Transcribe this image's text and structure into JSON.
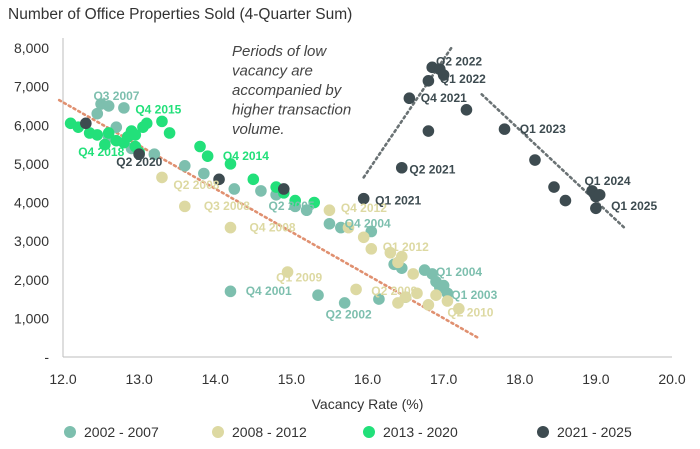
{
  "chart_data": {
    "type": "scatter",
    "title": "Number of Office Properties Sold (4-Quarter Sum)",
    "xlabel": "Vacancy Rate (%)",
    "ylabel": "",
    "xlim": [
      12.0,
      20.0
    ],
    "ylim": [
      0,
      8000
    ],
    "x_ticks": [
      "12.0",
      "13.0",
      "14.0",
      "15.0",
      "16.0",
      "17.0",
      "18.0",
      "19.0",
      "20.0"
    ],
    "y_ticks": [
      "-",
      "1,000",
      "2,000",
      "3,000",
      "4,000",
      "5,000",
      "6,000",
      "7,000",
      "8,000"
    ],
    "grid": false,
    "legend_position": "bottom",
    "note": [
      "Periods of low",
      "vacancy are",
      "accompanied by",
      "higher transaction",
      "volume."
    ],
    "series": [
      {
        "name": "2002 - 2007",
        "color": "#7dbfae",
        "points": [
          [
            12.5,
            6550
          ],
          [
            12.6,
            6500
          ],
          [
            12.8,
            6450
          ],
          [
            12.45,
            6300
          ],
          [
            12.7,
            5950
          ],
          [
            12.6,
            5700
          ],
          [
            12.9,
            5400
          ],
          [
            13.2,
            5250
          ],
          [
            13.6,
            4950
          ],
          [
            13.85,
            4750
          ],
          [
            14.25,
            4350
          ],
          [
            14.6,
            4300
          ],
          [
            14.8,
            4200
          ],
          [
            15.05,
            3900
          ],
          [
            15.2,
            3800
          ],
          [
            15.5,
            3450
          ],
          [
            15.65,
            3350
          ],
          [
            16.05,
            3250
          ],
          [
            16.35,
            2400
          ],
          [
            16.45,
            2300
          ],
          [
            16.75,
            2250
          ],
          [
            16.85,
            2150
          ],
          [
            16.9,
            1950
          ],
          [
            16.95,
            1800
          ],
          [
            17.0,
            1850
          ],
          [
            17.05,
            1650
          ],
          [
            16.5,
            1550
          ],
          [
            16.15,
            1500
          ],
          [
            15.7,
            1400
          ],
          [
            15.35,
            1600
          ],
          [
            14.2,
            1700
          ]
        ]
      },
      {
        "name": "2008 - 2012",
        "color": "#ddd9a2",
        "points": [
          [
            13.3,
            4650
          ],
          [
            13.6,
            3900
          ],
          [
            14.2,
            3350
          ],
          [
            15.5,
            3800
          ],
          [
            15.75,
            3350
          ],
          [
            15.95,
            3100
          ],
          [
            16.05,
            2800
          ],
          [
            16.3,
            2700
          ],
          [
            16.45,
            2600
          ],
          [
            16.4,
            2450
          ],
          [
            16.6,
            2150
          ],
          [
            14.95,
            2200
          ],
          [
            15.85,
            1750
          ],
          [
            16.65,
            1650
          ],
          [
            16.9,
            1600
          ],
          [
            16.5,
            1550
          ],
          [
            16.8,
            1350
          ],
          [
            17.05,
            1450
          ],
          [
            17.2,
            1250
          ],
          [
            16.4,
            1400
          ]
        ]
      },
      {
        "name": "2013 - 2020",
        "color": "#22e07a",
        "points": [
          [
            12.1,
            6050
          ],
          [
            12.2,
            5950
          ],
          [
            12.35,
            5800
          ],
          [
            12.45,
            5750
          ],
          [
            12.6,
            5800
          ],
          [
            12.7,
            5600
          ],
          [
            12.55,
            5500
          ],
          [
            12.8,
            5550
          ],
          [
            12.85,
            5700
          ],
          [
            12.95,
            5750
          ],
          [
            12.9,
            5850
          ],
          [
            13.05,
            5950
          ],
          [
            13.1,
            6050
          ],
          [
            13.3,
            6100
          ],
          [
            13.4,
            5800
          ],
          [
            13.0,
            5300
          ],
          [
            12.95,
            5450
          ],
          [
            13.8,
            5450
          ],
          [
            13.9,
            5200
          ],
          [
            14.2,
            5000
          ],
          [
            14.5,
            4600
          ],
          [
            14.8,
            4400
          ],
          [
            14.9,
            4250
          ],
          [
            15.05,
            4050
          ],
          [
            15.3,
            4000
          ]
        ]
      },
      {
        "name": "2021 - 2025",
        "color": "#3d4b50",
        "points": [
          [
            12.3,
            6050
          ],
          [
            13.0,
            5250
          ],
          [
            14.05,
            4600
          ],
          [
            14.9,
            4350
          ],
          [
            15.95,
            4100
          ],
          [
            16.45,
            4900
          ],
          [
            16.8,
            5850
          ],
          [
            16.55,
            6700
          ],
          [
            16.8,
            7150
          ],
          [
            16.85,
            7500
          ],
          [
            16.95,
            7450
          ],
          [
            17.0,
            7300
          ],
          [
            17.3,
            6400
          ],
          [
            17.8,
            5900
          ],
          [
            18.2,
            5100
          ],
          [
            18.45,
            4400
          ],
          [
            18.6,
            4050
          ],
          [
            18.95,
            4300
          ],
          [
            19.0,
            4150
          ],
          [
            19.05,
            4200
          ],
          [
            19.0,
            3850
          ]
        ]
      }
    ],
    "annotations": [
      {
        "text": "Q3 2007",
        "x": 12.4,
        "y": 6650,
        "color": "#7dbfae"
      },
      {
        "text": "Q4 2015",
        "x": 12.95,
        "y": 6300,
        "color": "#22e07a"
      },
      {
        "text": "Q4 2018",
        "x": 12.2,
        "y": 5200,
        "color": "#22e07a"
      },
      {
        "text": "Q2 2020",
        "x": 12.7,
        "y": 4950,
        "color": "#3d4b50"
      },
      {
        "text": "Q4 2014",
        "x": 14.1,
        "y": 5100,
        "color": "#22e07a"
      },
      {
        "text": "Q2 2008",
        "x": 13.45,
        "y": 4350,
        "color": "#ddd9a2"
      },
      {
        "text": "Q3 2008",
        "x": 13.85,
        "y": 3800,
        "color": "#ddd9a2"
      },
      {
        "text": "Q4 2008",
        "x": 14.45,
        "y": 3250,
        "color": "#ddd9a2"
      },
      {
        "text": "Q2 2005",
        "x": 14.7,
        "y": 3800,
        "color": "#7dbfae"
      },
      {
        "text": "Q4 2012",
        "x": 15.65,
        "y": 3750,
        "color": "#ddd9a2"
      },
      {
        "text": "Q4 2004",
        "x": 15.7,
        "y": 3350,
        "color": "#7dbfae"
      },
      {
        "text": "Q1 2012",
        "x": 16.2,
        "y": 2750,
        "color": "#ddd9a2"
      },
      {
        "text": "Q1 2009",
        "x": 14.8,
        "y": 1950,
        "color": "#ddd9a2"
      },
      {
        "text": "Q2 2009",
        "x": 16.05,
        "y": 1600,
        "color": "#ddd9a2"
      },
      {
        "text": "Q4 2001",
        "x": 14.4,
        "y": 1600,
        "color": "#7dbfae"
      },
      {
        "text": "Q2 2002",
        "x": 15.45,
        "y": 1000,
        "color": "#7dbfae"
      },
      {
        "text": "Q1 2004",
        "x": 16.9,
        "y": 2100,
        "color": "#7dbfae"
      },
      {
        "text": "Q1 2003",
        "x": 17.1,
        "y": 1500,
        "color": "#7dbfae"
      },
      {
        "text": "Q2 2010",
        "x": 17.05,
        "y": 1050,
        "color": "#ddd9a2"
      },
      {
        "text": "Q1 2021",
        "x": 16.1,
        "y": 3950,
        "color": "#3d4b50"
      },
      {
        "text": "Q2 2021",
        "x": 16.55,
        "y": 4750,
        "color": "#3d4b50"
      },
      {
        "text": "Q4 2021",
        "x": 16.7,
        "y": 6600,
        "color": "#3d4b50"
      },
      {
        "text": "Q2 2022",
        "x": 16.9,
        "y": 7550,
        "color": "#3d4b50"
      },
      {
        "text": "Q1 2022",
        "x": 16.95,
        "y": 7100,
        "color": "#3d4b50"
      },
      {
        "text": "Q1 2023",
        "x": 18.0,
        "y": 5800,
        "color": "#3d4b50"
      },
      {
        "text": "Q1 2024",
        "x": 18.85,
        "y": 4450,
        "color": "#3d4b50"
      },
      {
        "text": "Q1 2025",
        "x": 19.2,
        "y": 3800,
        "color": "#3d4b50"
      }
    ],
    "trendlines": [
      {
        "color": "#e09070",
        "from": [
          11.95,
          6650
        ],
        "to": [
          17.45,
          500
        ]
      },
      {
        "color": "#6a7274",
        "from": [
          15.95,
          4650
        ],
        "to": [
          17.1,
          8000
        ]
      },
      {
        "color": "#6a7274",
        "from": [
          17.5,
          6800
        ],
        "to": [
          19.4,
          3300
        ]
      }
    ]
  }
}
